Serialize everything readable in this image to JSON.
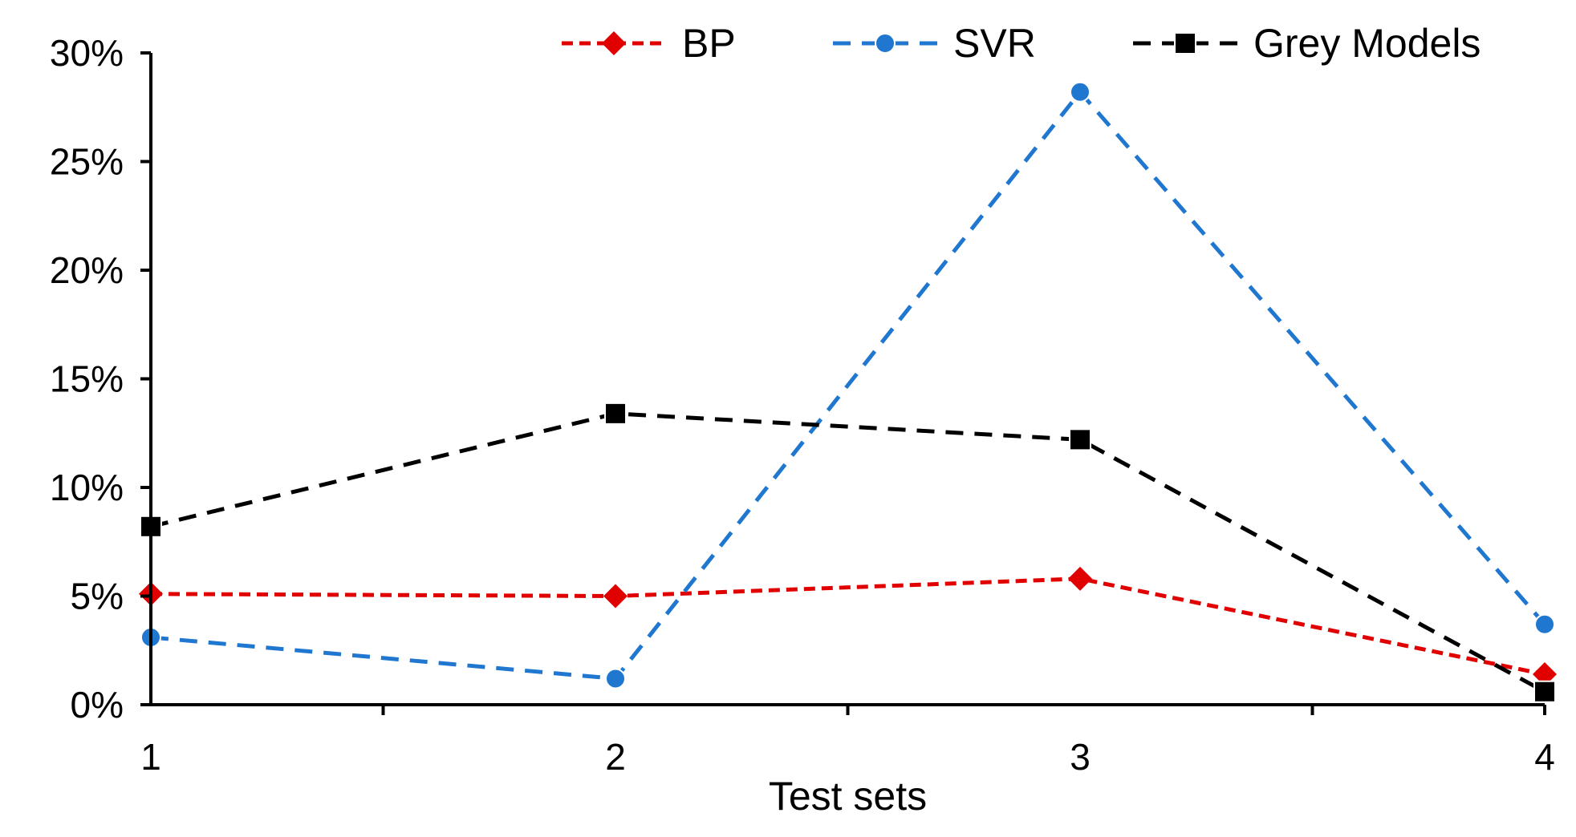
{
  "chart_data": {
    "type": "line",
    "title": "",
    "xlabel": "Test sets",
    "ylabel": "",
    "categories": [
      "1",
      "2",
      "3",
      "4"
    ],
    "ylim": [
      0,
      30
    ],
    "yticks": [
      0,
      5,
      10,
      15,
      20,
      25,
      30
    ],
    "ytick_labels": [
      "0%",
      "5%",
      "10%",
      "15%",
      "20%",
      "25%",
      "30%"
    ],
    "grid": false,
    "legend_position": "top",
    "series": [
      {
        "name": "BP",
        "values": [
          5.1,
          5.0,
          5.8,
          1.4
        ],
        "color": "#e00000",
        "marker": "diamond",
        "dash": "short"
      },
      {
        "name": "SVR",
        "values": [
          3.1,
          1.2,
          28.2,
          3.7
        ],
        "color": "#1f77d0",
        "marker": "circle",
        "dash": "long"
      },
      {
        "name": "Grey Models",
        "values": [
          8.2,
          13.4,
          12.2,
          0.6
        ],
        "color": "#000000",
        "marker": "square",
        "dash": "long"
      }
    ]
  }
}
